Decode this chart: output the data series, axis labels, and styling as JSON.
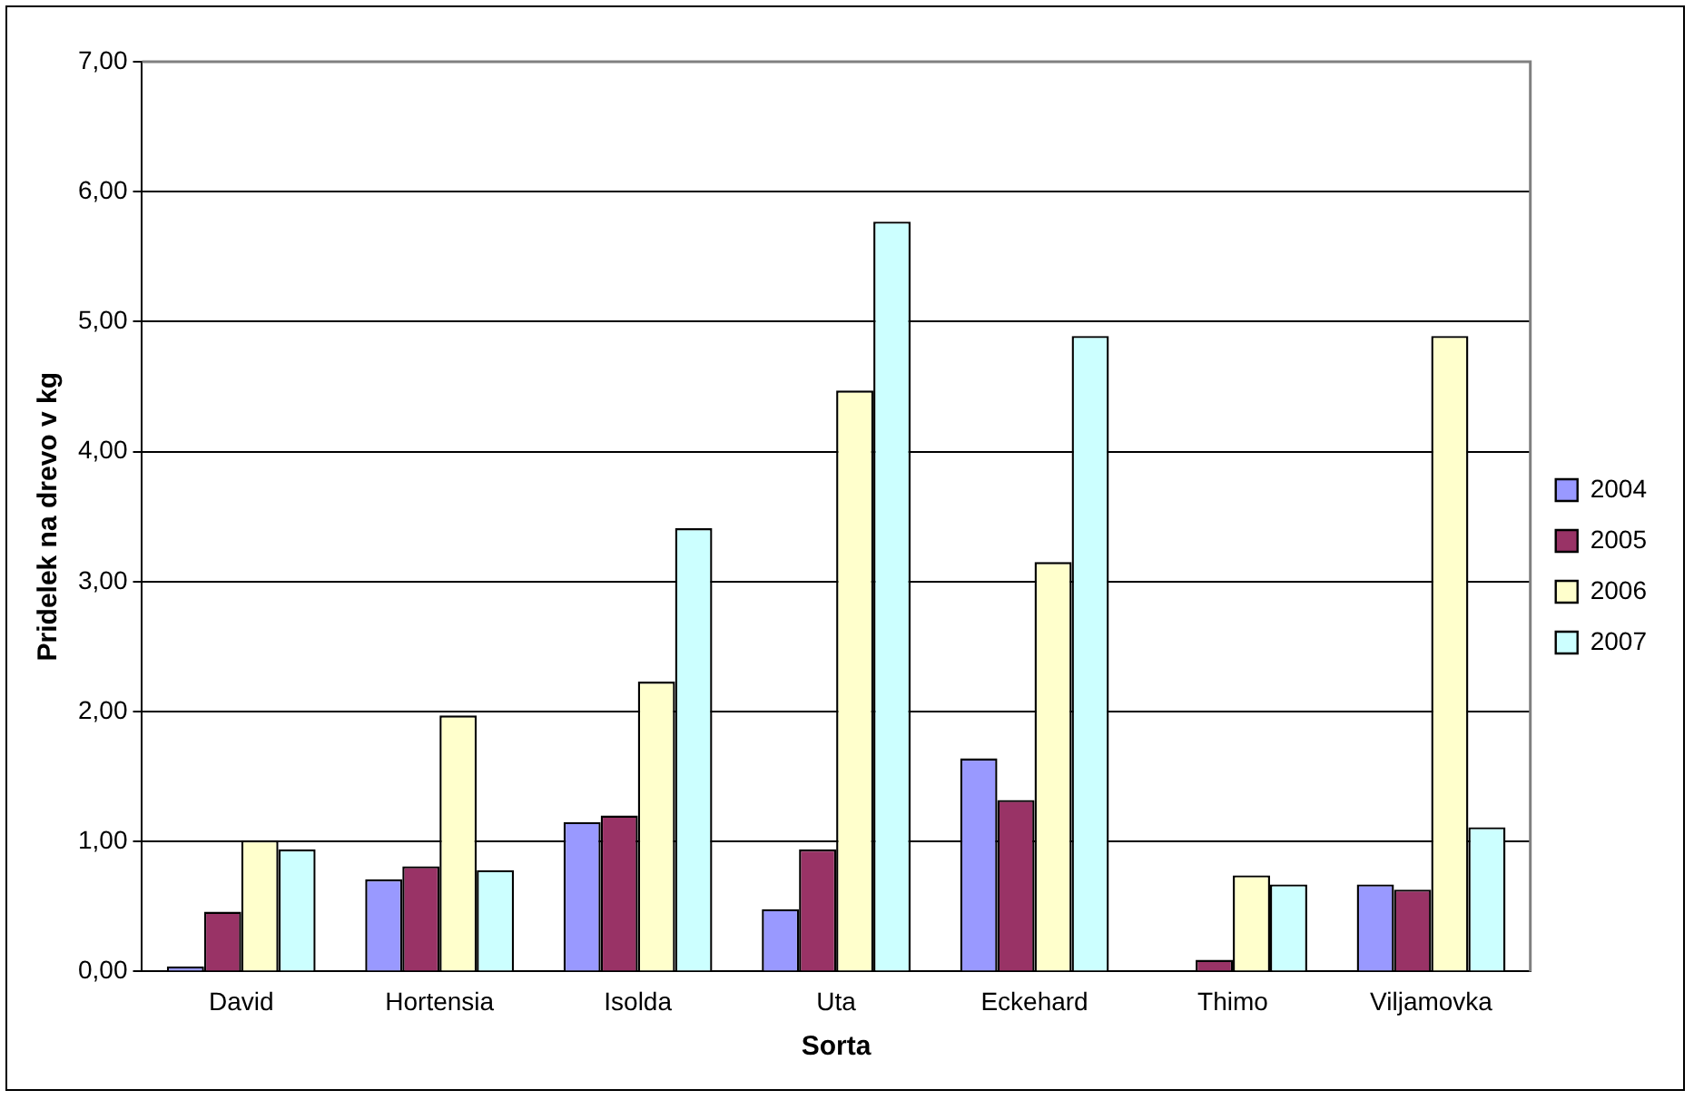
{
  "chart_data": {
    "type": "bar",
    "xlabel": "Sorta",
    "ylabel": "Pridelek na drevo v kg",
    "categories": [
      "David",
      "Hortensia",
      "Isolda",
      "Uta",
      "Eckehard",
      "Thimo",
      "Viljamovka"
    ],
    "series": [
      {
        "name": "2004",
        "color": "#9999ff",
        "values": [
          0.04,
          0.71,
          1.15,
          0.48,
          1.64,
          0,
          0.67
        ]
      },
      {
        "name": "2005",
        "color": "#993366",
        "values": [
          0.46,
          0.81,
          1.2,
          0.94,
          1.32,
          0.09,
          0.63
        ]
      },
      {
        "name": "2006",
        "color": "#ffffcc",
        "values": [
          1.01,
          1.97,
          2.23,
          4.47,
          3.15,
          0.74,
          4.89
        ]
      },
      {
        "name": "2007",
        "color": "#ccffff",
        "values": [
          0.94,
          0.78,
          3.41,
          5.77,
          4.89,
          0.67,
          1.11
        ]
      }
    ],
    "ylim": [
      0,
      7
    ],
    "yticks": [
      {
        "value": 0,
        "label": "0,00"
      },
      {
        "value": 1,
        "label": "1,00"
      },
      {
        "value": 2,
        "label": "2,00"
      },
      {
        "value": 3,
        "label": "3,00"
      },
      {
        "value": 4,
        "label": "4,00"
      },
      {
        "value": 5,
        "label": "5,00"
      },
      {
        "value": 6,
        "label": "6,00"
      },
      {
        "value": 7,
        "label": "7,00"
      }
    ],
    "grid": "y",
    "legend": "right"
  }
}
